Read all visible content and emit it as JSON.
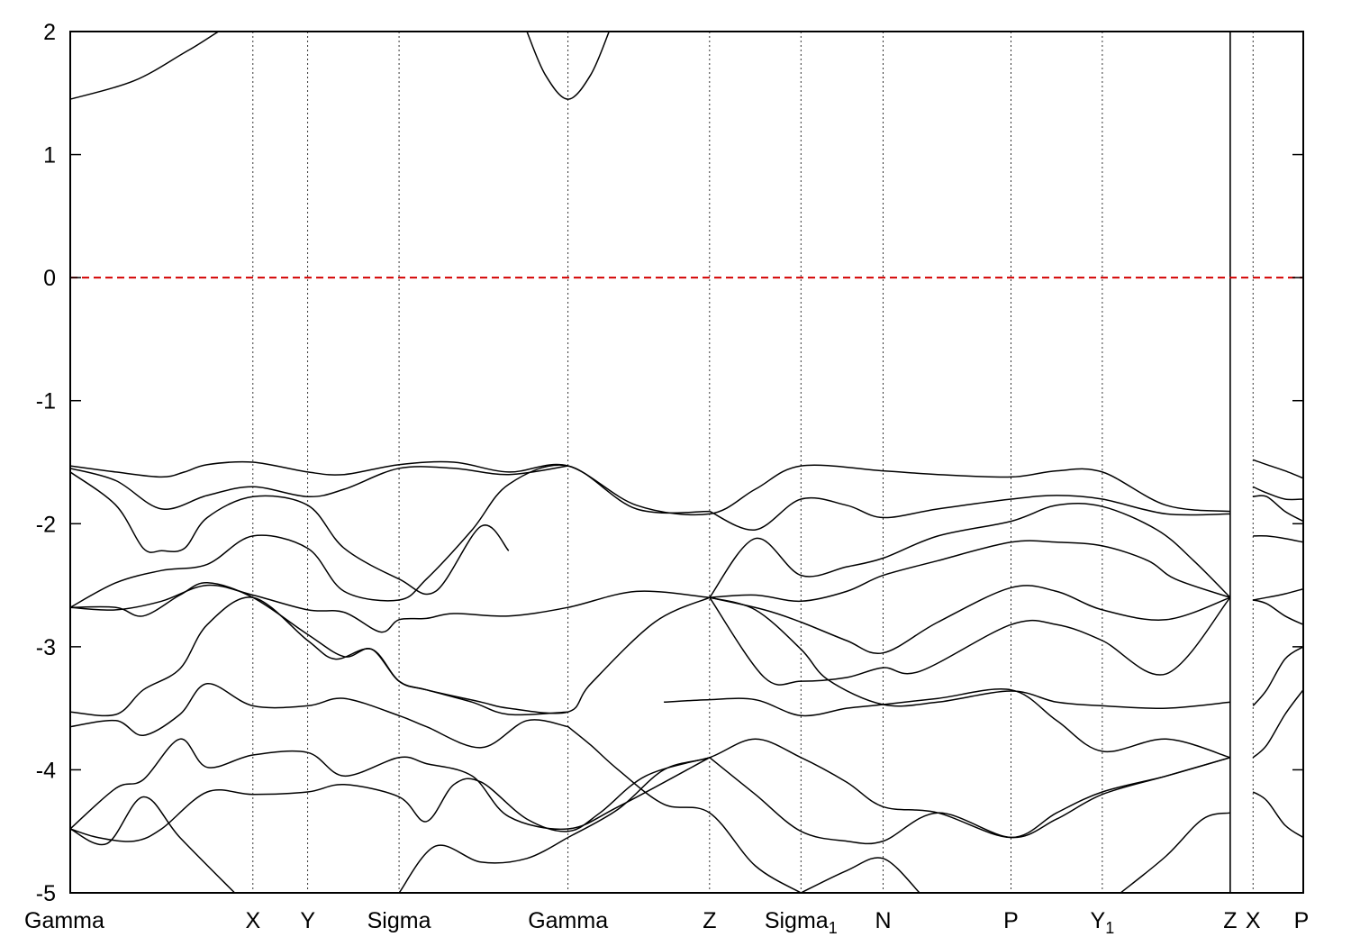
{
  "chart_data": {
    "type": "line",
    "title": "",
    "xlabel": "",
    "ylabel": "",
    "ylim": [
      -5,
      2
    ],
    "yticks": [
      2,
      1,
      0,
      -1,
      -2,
      -3,
      -4,
      -5
    ],
    "xlim": [
      0,
      13.5
    ],
    "high_symmetry_points": [
      {
        "label": "Gamma",
        "sub": "",
        "x": 0
      },
      {
        "label": "X",
        "sub": "",
        "x": 2.0
      },
      {
        "label": "Y",
        "sub": "",
        "x": 2.6
      },
      {
        "label": "Sigma",
        "sub": "",
        "x": 3.6
      },
      {
        "label": "Gamma",
        "sub": "",
        "x": 5.45
      },
      {
        "label": "Z",
        "sub": "",
        "x": 7.0
      },
      {
        "label": "Sigma",
        "sub": "1",
        "x": 8.0
      },
      {
        "label": "N",
        "sub": "",
        "x": 8.9
      },
      {
        "label": "P",
        "sub": "",
        "x": 10.3
      },
      {
        "label": "Y",
        "sub": "1",
        "x": 11.3
      },
      {
        "label": "Z",
        "sub": "",
        "x": 12.7
      },
      {
        "label": "X",
        "sub": "",
        "x": 12.95
      },
      {
        "label": "P",
        "sub": "",
        "x": 13.5
      }
    ],
    "fermi_level": 0,
    "colors": {
      "bands": "#000000",
      "fermi": "#d40000",
      "grid": "#000000"
    },
    "grid": "vertical dotted at high-symmetry points",
    "series": [
      {
        "x": [
          0,
          0.5,
          1.0,
          1.25,
          1.5,
          2.0,
          2.6,
          3.0,
          3.6,
          4.2,
          4.8,
          5.45,
          6.2,
          7.0,
          7.5,
          8.0,
          8.9,
          9.5,
          10.3,
          10.8,
          11.3,
          12.0,
          12.7
        ],
        "values": [
          -1.53,
          -1.58,
          -1.62,
          -1.58,
          -1.52,
          -1.5,
          -1.58,
          -1.6,
          -1.52,
          -1.5,
          -1.58,
          -1.53,
          -1.85,
          -1.92,
          -1.72,
          -1.53,
          -1.57,
          -1.6,
          -1.62,
          -1.57,
          -1.58,
          -1.85,
          -1.9
        ]
      },
      {
        "x": [
          0,
          0.5,
          1.0,
          1.5,
          2.0,
          2.6,
          3.0,
          3.6,
          4.2,
          4.8,
          5.45
        ],
        "values": [
          -1.55,
          -1.65,
          -1.88,
          -1.77,
          -1.7,
          -1.78,
          -1.72,
          -1.55,
          -1.55,
          -1.6,
          -1.53
        ]
      },
      {
        "x": [
          0,
          0.5,
          0.8,
          1.0,
          1.25,
          1.5,
          2.0,
          2.6,
          3.0,
          3.6,
          4.0,
          4.5,
          4.8
        ],
        "values": [
          -1.58,
          -1.85,
          -2.2,
          -2.22,
          -2.2,
          -1.95,
          -1.78,
          -1.85,
          -2.2,
          -2.45,
          -2.55,
          -2.02,
          -2.22
        ]
      },
      {
        "x": [
          0,
          0.5,
          1.0,
          1.5,
          2.0,
          2.6,
          3.0,
          3.6,
          3.9,
          4.4,
          4.8,
          5.45,
          6.2,
          7.0
        ],
        "values": [
          -2.68,
          -2.48,
          -2.38,
          -2.33,
          -2.1,
          -2.2,
          -2.55,
          -2.62,
          -2.45,
          -2.05,
          -1.68,
          -1.53,
          -1.88,
          -1.9
        ]
      },
      {
        "x": [
          0,
          0.5,
          1.0,
          1.5,
          2.0,
          2.6,
          3.0,
          3.4,
          3.6,
          3.9,
          4.2,
          4.8,
          5.45,
          6.2,
          7.0
        ],
        "values": [
          -2.68,
          -2.7,
          -2.63,
          -2.5,
          -2.58,
          -2.7,
          -2.72,
          -2.88,
          -2.78,
          -2.77,
          -2.73,
          -2.75,
          -2.68,
          -2.55,
          -2.6
        ]
      },
      {
        "x": [
          0,
          0.5,
          0.8,
          1.2,
          1.5,
          2.0,
          2.6,
          3.0,
          3.3,
          3.6,
          3.9,
          4.5,
          4.8,
          5.45,
          5.7,
          6.4,
          7.0
        ],
        "values": [
          -2.68,
          -2.68,
          -2.75,
          -2.58,
          -2.48,
          -2.6,
          -2.9,
          -3.08,
          -3.02,
          -3.28,
          -3.35,
          -3.45,
          -3.5,
          -3.53,
          -3.3,
          -2.8,
          -2.6
        ]
      },
      {
        "x": [
          0,
          0.5,
          0.8,
          1.2,
          1.5,
          2.0,
          2.6,
          2.9,
          3.3,
          3.6,
          3.9,
          4.4,
          4.8,
          5.45
        ],
        "values": [
          -3.53,
          -3.55,
          -3.35,
          -3.18,
          -2.82,
          -2.6,
          -2.95,
          -3.1,
          -3.02,
          -3.28,
          -3.35,
          -3.45,
          -3.55,
          -3.53
        ]
      },
      {
        "x": [
          0,
          0.5,
          0.8,
          1.2,
          1.5,
          2.0,
          2.6,
          3.0,
          3.6,
          3.9,
          4.5,
          5.0,
          5.45
        ],
        "values": [
          -3.65,
          -3.6,
          -3.72,
          -3.55,
          -3.3,
          -3.48,
          -3.48,
          -3.42,
          -3.56,
          -3.65,
          -3.82,
          -3.6,
          -3.65
        ]
      },
      {
        "x": [
          0,
          0.5,
          0.8,
          1.2,
          1.5,
          2.0,
          2.6,
          3.0,
          3.6,
          3.9,
          4.4,
          4.8,
          5.45,
          6.0,
          7.0
        ],
        "values": [
          -4.48,
          -4.15,
          -4.08,
          -3.75,
          -3.98,
          -3.88,
          -3.86,
          -4.05,
          -3.9,
          -3.95,
          -4.05,
          -4.38,
          -4.48,
          -4.3,
          -3.9
        ]
      },
      {
        "x": [
          0,
          0.3,
          0.7,
          1.0,
          1.5,
          2.0,
          2.6,
          3.0,
          3.6,
          3.9,
          4.2,
          4.5,
          5.0,
          5.45,
          5.8,
          6.3,
          7.0
        ],
        "values": [
          -4.48,
          -4.55,
          -4.58,
          -4.48,
          -4.18,
          -4.2,
          -4.18,
          -4.12,
          -4.22,
          -4.42,
          -4.12,
          -4.1,
          -4.4,
          -4.5,
          -4.35,
          -4.05,
          -3.9
        ]
      },
      {
        "x": [
          0,
          0.4,
          0.8,
          1.2,
          1.8
        ],
        "values": [
          -4.48,
          -4.6,
          -4.22,
          -4.55,
          -5.0
        ]
      },
      {
        "x": [
          3.6,
          4.0,
          4.5,
          5.0,
          5.45
        ],
        "values": [
          -5.0,
          -4.62,
          -4.75,
          -4.72,
          -4.55
        ]
      },
      {
        "x": [
          5.45,
          5.7,
          6.0,
          6.5,
          7.0,
          7.5,
          8.0
        ],
        "values": [
          -3.65,
          -3.8,
          -4.0,
          -4.28,
          -4.35,
          -4.78,
          -5.0
        ]
      },
      {
        "x": [
          5.45,
          6.0,
          6.5,
          7.0,
          7.5,
          8.0,
          8.5,
          8.9,
          9.5,
          10.3,
          10.8,
          11.3,
          12.0,
          12.7
        ],
        "values": [
          -4.55,
          -4.32,
          -4.0,
          -3.9,
          -3.75,
          -3.9,
          -4.1,
          -4.3,
          -4.35,
          -4.55,
          -4.35,
          -4.18,
          -4.05,
          -3.9
        ]
      },
      {
        "x": [
          6.5,
          7.0,
          7.5,
          8.0,
          8.5,
          8.9,
          9.5,
          10.3,
          10.8,
          11.3,
          12.0,
          12.7
        ],
        "values": [
          -3.45,
          -3.43,
          -3.43,
          -3.56,
          -3.5,
          -3.47,
          -3.42,
          -3.35,
          -3.6,
          -3.85,
          -3.75,
          -3.9
        ]
      },
      {
        "x": [
          7.0,
          7.5,
          8.0,
          8.5,
          8.9,
          9.5,
          10.3,
          10.8,
          11.3,
          12.0,
          12.7
        ],
        "values": [
          -3.9,
          -4.2,
          -4.5,
          -4.58,
          -4.58,
          -4.35,
          -4.55,
          -4.4,
          -4.2,
          -4.05,
          -3.9
        ]
      },
      {
        "x": [
          8.0,
          8.5,
          8.9,
          9.3
        ],
        "values": [
          -5.0,
          -4.82,
          -4.72,
          -5.0
        ]
      },
      {
        "x": [
          7.0,
          7.5,
          8.0,
          8.5,
          8.9,
          9.5,
          10.3,
          10.8,
          11.3,
          11.9,
          12.3,
          12.7
        ],
        "values": [
          -2.6,
          -2.12,
          -2.42,
          -2.35,
          -2.28,
          -2.1,
          -1.98,
          -1.85,
          -1.86,
          -2.05,
          -2.3,
          -2.6
        ]
      },
      {
        "x": [
          7.0,
          7.5,
          8.0,
          8.5,
          8.9,
          9.5,
          10.3,
          10.8,
          11.3,
          12.0,
          12.7
        ],
        "values": [
          -1.9,
          -2.05,
          -1.8,
          -1.85,
          -1.95,
          -1.88,
          -1.8,
          -1.77,
          -1.8,
          -1.92,
          -1.92
        ]
      },
      {
        "x": [
          7.0,
          7.5,
          8.0,
          8.5,
          8.9,
          9.5,
          10.3,
          10.8,
          11.3,
          11.8,
          12.1,
          12.7
        ],
        "values": [
          -2.6,
          -2.58,
          -2.63,
          -2.55,
          -2.42,
          -2.3,
          -2.15,
          -2.15,
          -2.18,
          -2.3,
          -2.45,
          -2.6
        ]
      },
      {
        "x": [
          7.0,
          7.6,
          8.0,
          8.5,
          8.9,
          9.3,
          10.3,
          10.8,
          11.3,
          12.0,
          12.7
        ],
        "values": [
          -2.6,
          -3.25,
          -3.28,
          -3.25,
          -3.17,
          -3.2,
          -2.82,
          -2.82,
          -2.95,
          -3.22,
          -2.6
        ]
      },
      {
        "x": [
          7.0,
          7.6,
          8.0,
          8.5,
          8.9,
          9.5,
          10.3,
          10.8,
          11.3,
          12.0,
          12.7
        ],
        "values": [
          -2.6,
          -2.7,
          -2.8,
          -2.95,
          -3.05,
          -2.8,
          -2.52,
          -2.55,
          -2.7,
          -2.78,
          -2.6
        ]
      },
      {
        "x": [
          7.0,
          7.5,
          8.0,
          8.3,
          8.9,
          9.5,
          10.3,
          10.8,
          11.3,
          12.0,
          12.7
        ],
        "values": [
          -2.6,
          -2.7,
          -3.02,
          -3.27,
          -3.47,
          -3.45,
          -3.36,
          -3.45,
          -3.48,
          -3.5,
          -3.45
        ]
      },
      {
        "x": [
          11.5,
          12.0,
          12.4,
          12.7
        ],
        "values": [
          -5.0,
          -4.7,
          -4.4,
          -4.35
        ]
      },
      {
        "x": [
          12.95,
          13.1,
          13.3,
          13.5
        ],
        "values": [
          -1.48,
          -1.52,
          -1.57,
          -1.63
        ]
      },
      {
        "x": [
          12.95,
          13.1,
          13.3,
          13.5
        ],
        "values": [
          -1.7,
          -1.75,
          -1.8,
          -1.8
        ]
      },
      {
        "x": [
          12.95,
          13.1,
          13.3,
          13.5
        ],
        "values": [
          -1.78,
          -1.78,
          -1.9,
          -1.98
        ]
      },
      {
        "x": [
          12.95,
          13.1,
          13.3,
          13.5
        ],
        "values": [
          -2.1,
          -2.1,
          -2.12,
          -2.15
        ]
      },
      {
        "x": [
          12.95,
          13.1,
          13.3,
          13.5
        ],
        "values": [
          -2.62,
          -2.6,
          -2.57,
          -2.53
        ]
      },
      {
        "x": [
          12.95,
          13.1,
          13.3,
          13.5
        ],
        "values": [
          -2.62,
          -2.65,
          -2.75,
          -2.82
        ]
      },
      {
        "x": [
          12.95,
          13.1,
          13.3,
          13.5
        ],
        "values": [
          -3.48,
          -3.35,
          -3.1,
          -3.0
        ]
      },
      {
        "x": [
          12.95,
          13.1,
          13.3,
          13.5
        ],
        "values": [
          -3.9,
          -3.8,
          -3.55,
          -3.35
        ]
      },
      {
        "x": [
          12.95,
          13.1,
          13.3,
          13.5
        ],
        "values": [
          -4.18,
          -4.25,
          -4.45,
          -4.55
        ]
      },
      {
        "x": [
          0,
          0.7,
          1.3,
          1.9,
          2.25
        ],
        "values": [
          1.45,
          1.6,
          1.85,
          2.1,
          2.0
        ]
      },
      {
        "x": [
          5.0,
          5.2,
          5.45,
          5.7,
          5.9
        ],
        "values": [
          2.0,
          1.65,
          1.45,
          1.65,
          2.0
        ]
      }
    ]
  }
}
